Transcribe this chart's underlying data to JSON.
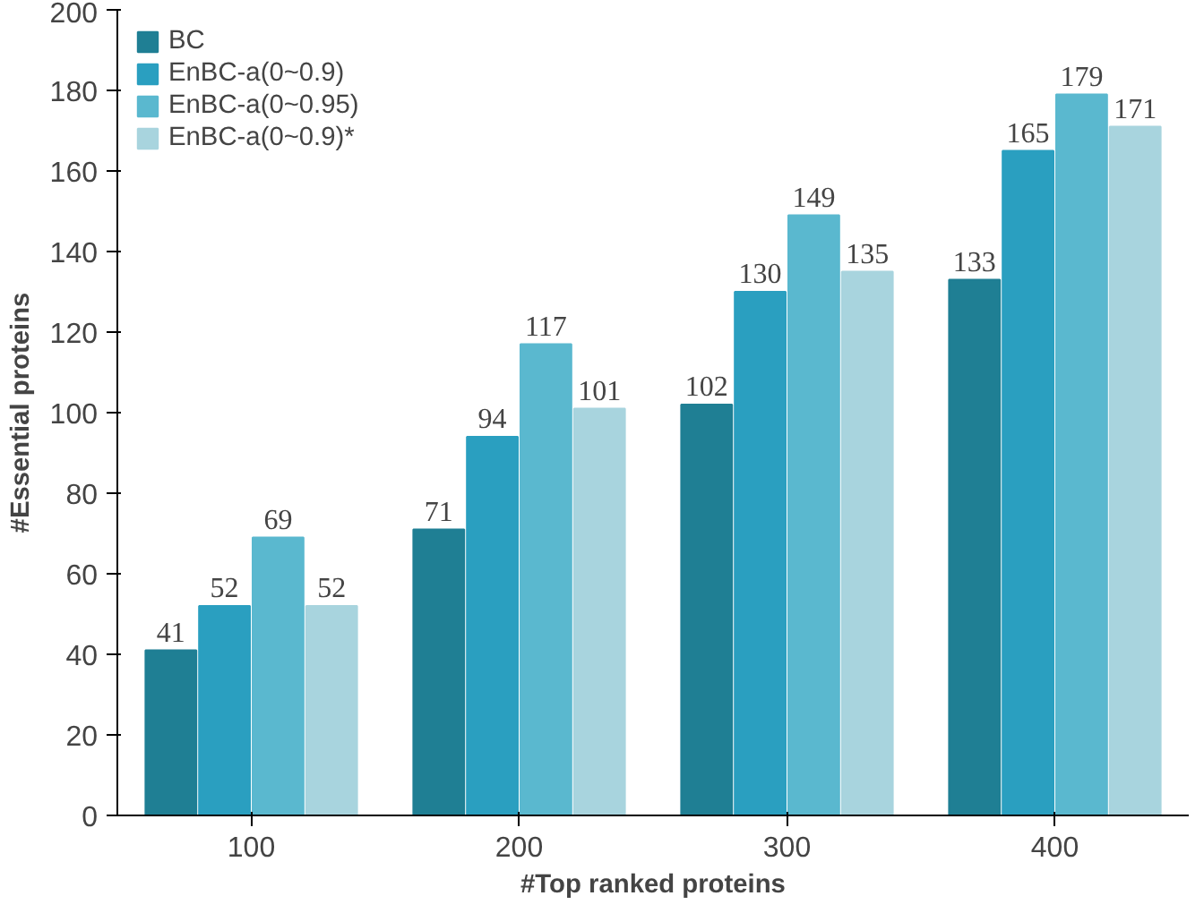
{
  "chart_data": {
    "type": "bar",
    "xlabel": "#Top ranked proteins",
    "ylabel": "#Essential proteins",
    "categories": [
      "100",
      "200",
      "300",
      "400"
    ],
    "series": [
      {
        "name": "BC",
        "color": "#1f7f94",
        "values": [
          41,
          71,
          102,
          133
        ]
      },
      {
        "name": "EnBC-a(0~0.9)",
        "color": "#2a9fc0",
        "values": [
          52,
          94,
          130,
          165
        ]
      },
      {
        "name": "EnBC-a(0~0.95)",
        "color": "#5ab8cf",
        "values": [
          69,
          117,
          149,
          179
        ]
      },
      {
        "name": "EnBC-a(0~0.9)*",
        "color": "#a8d4de",
        "values": [
          52,
          101,
          135,
          171
        ]
      }
    ],
    "ylim": [
      0,
      200
    ],
    "yticks": [
      0,
      20,
      40,
      60,
      80,
      100,
      120,
      140,
      160,
      180,
      200
    ],
    "data_labels": true,
    "grid": false,
    "legend": "top left"
  }
}
